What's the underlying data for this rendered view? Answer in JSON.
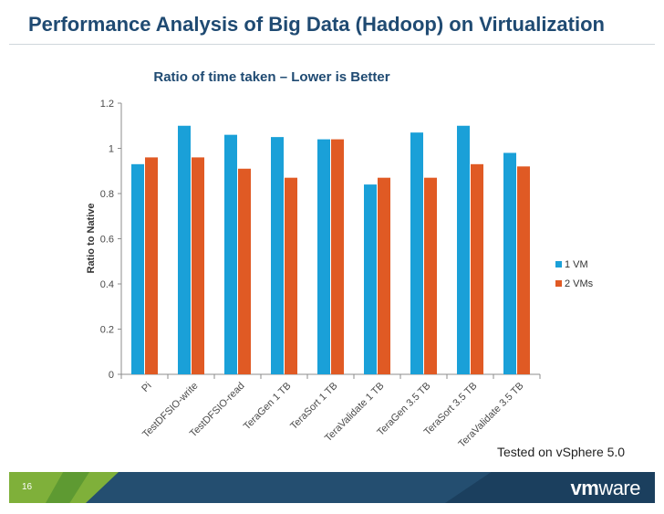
{
  "slide": {
    "title": "Performance Analysis of Big Data (Hadoop) on Virtualization",
    "footnote": "Tested on vSphere 5.0",
    "page_number": "16",
    "logo": {
      "vm": "vm",
      "ware": "ware"
    }
  },
  "colors": {
    "series_1": "#1aa0d8",
    "series_2": "#e05a24",
    "title": "#1f4a72",
    "footer": "#244e70"
  },
  "chart_data": {
    "type": "bar",
    "title": "Ratio of time taken – Lower is Better",
    "xlabel": "",
    "ylabel": "Ratio to Native",
    "ylim": [
      0,
      1.2
    ],
    "yticks": [
      0,
      0.2,
      0.4,
      0.6,
      0.8,
      1,
      1.2
    ],
    "ytick_labels": [
      "0",
      "0.2",
      "0.4",
      "0.6",
      "0.8",
      "1",
      "1.2"
    ],
    "grid": false,
    "legend_position": "right",
    "categories": [
      "Pi",
      "TestDFSIO-write",
      "TestDFSIO-read",
      "TeraGen 1 TB",
      "TeraSort 1 TB",
      "TeraValidate 1 TB",
      "TeraGen 3.5 TB",
      "TeraSort 3.5 TB",
      "TeraValidate 3.5 TB"
    ],
    "series": [
      {
        "name": "1 VM",
        "values": [
          0.93,
          1.1,
          1.06,
          1.05,
          1.04,
          0.84,
          1.07,
          1.1,
          0.98
        ]
      },
      {
        "name": "2 VMs",
        "values": [
          0.96,
          0.96,
          0.91,
          0.87,
          1.04,
          0.87,
          0.87,
          0.93,
          0.92
        ]
      }
    ]
  }
}
